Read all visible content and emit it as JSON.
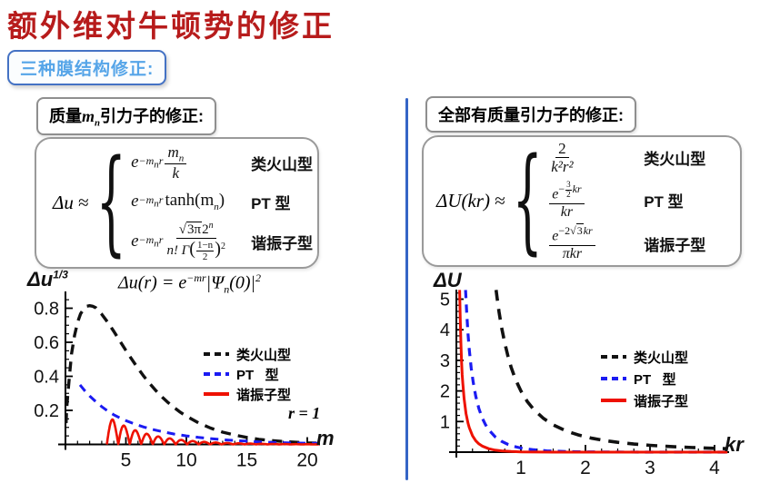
{
  "slide": {
    "title": "额外维对牛顿势的修正",
    "subtitle": "三种膜结构修正:"
  },
  "colors": {
    "title_red": "#B71C1C",
    "box_border_blue": "#4472C4",
    "subtitle_blue": "#56A5E8",
    "divider_blue": "#3565C6",
    "curve_black": "#111111",
    "curve_blue": "#1B1BF2",
    "curve_red": "#EE1100"
  },
  "left_panel": {
    "header": {
      "pre": "质量",
      "math_base": "m",
      "math_sub": "n",
      "post": "引力子的修正:"
    },
    "formula": {
      "lhs": "Δu",
      "approx": "≈",
      "rows": [
        {
          "e": "e",
          "exp_pre": "−m",
          "exp_sub": "n",
          "exp_post": "r",
          "num_base": "m",
          "num_sub": "n",
          "den": "k",
          "label": "类火山型"
        },
        {
          "e": "e",
          "exp_pre": "−m",
          "exp_sub": "n",
          "exp_post": "r",
          "fn": "tanh(m",
          "fn_sub": "n",
          "fn_close": ")",
          "label": "PT 型"
        },
        {
          "e": "e",
          "exp_pre": "−m",
          "exp_sub": "n",
          "exp_post": "r",
          "sqrt": "√",
          "rad": "3π",
          "pow_base": "2",
          "pow_exp": "n",
          "den_pre": "n! Γ",
          "paren_open": "(",
          "ifrac_num": "1−n",
          "ifrac_den": "2",
          "paren_close": ")",
          "den_sup": "2",
          "label": "谐振子型"
        }
      ]
    }
  },
  "right_panel": {
    "header": "全部有质量引力子的修正:",
    "formula": {
      "lhs": "ΔU(kr)",
      "approx": "≈",
      "rows": [
        {
          "num": "2",
          "den": "k²r²",
          "label": "类火山型"
        },
        {
          "e": "e",
          "exp_pre": "−",
          "exp_num": "3",
          "exp_den": "2",
          "exp_post": "kr",
          "den": "kr",
          "label": "PT 型"
        },
        {
          "e": "e",
          "exp_pre": "−2",
          "sqrt": "√",
          "rad": "3",
          "exp_post": "kr",
          "den": "πkr",
          "label": "谐振子型"
        }
      ]
    }
  },
  "chart_data": [
    {
      "type": "line",
      "title_tokens": {
        "a": "Δu(r) = e",
        "a_sup": "−mr",
        "b_pre": "|Ψ",
        "b_sub": "n",
        "b_post": "(0)|",
        "b_sup": "2"
      },
      "ylabel": "Δu",
      "ylabel_sup": "1/3",
      "xlabel": "m",
      "xlim": [
        0,
        21.2
      ],
      "ylim": [
        0,
        0.88
      ],
      "xticks": [
        5,
        10,
        15,
        20
      ],
      "yticks": [
        0.2,
        0.4,
        0.6,
        0.8
      ],
      "xtick_labels": [
        "5",
        "10",
        "15",
        "20"
      ],
      "ytick_labels": [
        "0.2",
        "0.4",
        "0.6",
        "0.8"
      ],
      "xminor_step": 1,
      "yminor_step": 0.05,
      "grid": false,
      "legend_position": "center-right",
      "annotation": "r = 1",
      "legend": [
        {
          "label": "类火山型",
          "dash": true,
          "color": "#111111"
        },
        {
          "label": "PT   型",
          "dash": true,
          "color": "#1B1BF2"
        },
        {
          "label": "谐振子型",
          "dash": false,
          "color": "#EE1100"
        }
      ],
      "series": [
        {
          "name": "类火山型",
          "color": "#111111",
          "dash": [
            11,
            8
          ],
          "width": 3.4,
          "points": [
            [
              0.05,
              0.125
            ],
            [
              0.1,
              0.208
            ],
            [
              0.2,
              0.3
            ],
            [
              0.35,
              0.42
            ],
            [
              0.5,
              0.533
            ],
            [
              0.75,
              0.64
            ],
            [
              1,
              0.717
            ],
            [
              1.25,
              0.767
            ],
            [
              1.5,
              0.795
            ],
            [
              1.75,
              0.812
            ],
            [
              2,
              0.815
            ],
            [
              2.25,
              0.812
            ],
            [
              2.5,
              0.803
            ],
            [
              3,
              0.765
            ],
            [
              3.5,
              0.717
            ],
            [
              4,
              0.664
            ],
            [
              4.5,
              0.608
            ],
            [
              5,
              0.552
            ],
            [
              5.5,
              0.498
            ],
            [
              6,
              0.447
            ],
            [
              6.5,
              0.399
            ],
            [
              7,
              0.355
            ],
            [
              7.5,
              0.314
            ],
            [
              8,
              0.278
            ],
            [
              8.5,
              0.245
            ],
            [
              9,
              0.216
            ],
            [
              9.5,
              0.189
            ],
            [
              10,
              0.166
            ],
            [
              11,
              0.127
            ],
            [
              12,
              0.096
            ],
            [
              13,
              0.072
            ],
            [
              14,
              0.055
            ],
            [
              15,
              0.041
            ],
            [
              16,
              0.03
            ],
            [
              17,
              0.023
            ],
            [
              18,
              0.017
            ],
            [
              19,
              0.013
            ],
            [
              20,
              0.009
            ],
            [
              21,
              0.007
            ]
          ]
        },
        {
          "name": "PT 型",
          "color": "#1B1BF2",
          "dash": [
            9,
            7
          ],
          "width": 3,
          "points": [
            [
              1.2,
              0.35
            ],
            [
              1.6,
              0.315
            ],
            [
              2,
              0.285
            ],
            [
              2.5,
              0.252
            ],
            [
              3,
              0.222
            ],
            [
              3.5,
              0.196
            ],
            [
              4,
              0.174
            ],
            [
              4.5,
              0.156
            ],
            [
              5,
              0.14
            ],
            [
              5.5,
              0.126
            ],
            [
              6,
              0.113
            ],
            [
              6.5,
              0.102
            ],
            [
              7,
              0.092
            ],
            [
              7.5,
              0.083
            ],
            [
              8,
              0.075
            ],
            [
              9,
              0.061
            ],
            [
              10,
              0.05
            ],
            [
              11,
              0.041
            ],
            [
              12,
              0.034
            ],
            [
              13,
              0.028
            ],
            [
              14,
              0.023
            ],
            [
              15,
              0.019
            ],
            [
              16,
              0.015
            ],
            [
              17,
              0.012
            ],
            [
              18,
              0.01
            ],
            [
              19,
              0.008
            ],
            [
              20,
              0.007
            ],
            [
              21,
              0.006
            ]
          ]
        },
        {
          "name": "谐振子型",
          "color": "#EE1100",
          "width": 2.6,
          "oscillation": {
            "x_start": 3.42,
            "x_end": 21,
            "period": 0.95,
            "peak": 0.147,
            "tau": 3.3
          }
        }
      ]
    },
    {
      "type": "line",
      "ylabel": "ΔU",
      "xlabel": "kr",
      "xlim": [
        0,
        4.35
      ],
      "ylim": [
        0,
        5.3
      ],
      "xticks": [
        1,
        2,
        3,
        4
      ],
      "yticks": [
        1,
        2,
        3,
        4,
        5
      ],
      "xtick_labels": [
        "1",
        "2",
        "3",
        "4"
      ],
      "ytick_labels": [
        "1",
        "2",
        "3",
        "4",
        "5"
      ],
      "xminor_step": 0.25,
      "yminor_step": 0.2,
      "grid": false,
      "legend_position": "center-right",
      "annotation": "",
      "legend": [
        {
          "label": "类火山型",
          "dash": true,
          "color": "#111111"
        },
        {
          "label": "PT   型",
          "dash": true,
          "color": "#1B1BF2"
        },
        {
          "label": "谐振子型",
          "dash": false,
          "color": "#EE1100"
        }
      ],
      "series": [
        {
          "name": "类火山型",
          "color": "#111111",
          "dash": [
            12,
            9
          ],
          "width": 3.6,
          "points": [
            [
              0.615,
              5.3
            ],
            [
              0.634,
              5.0
            ],
            [
              0.66,
              4.59
            ],
            [
              0.7,
              4.08
            ],
            [
              0.75,
              3.56
            ],
            [
              0.8,
              3.13
            ],
            [
              0.85,
              2.77
            ],
            [
              0.9,
              2.47
            ],
            [
              0.95,
              2.22
            ],
            [
              1,
              2.0
            ],
            [
              1.1,
              1.65
            ],
            [
              1.2,
              1.39
            ],
            [
              1.35,
              1.1
            ],
            [
              1.5,
              0.89
            ],
            [
              1.7,
              0.69
            ],
            [
              1.9,
              0.554
            ],
            [
              2.1,
              0.454
            ],
            [
              2.3,
              0.378
            ],
            [
              2.5,
              0.32
            ],
            [
              2.75,
              0.264
            ],
            [
              3,
              0.222
            ],
            [
              3.25,
              0.189
            ],
            [
              3.5,
              0.163
            ],
            [
              3.75,
              0.142
            ],
            [
              4,
              0.125
            ],
            [
              4.2,
              0.113
            ]
          ]
        },
        {
          "name": "PT 型",
          "color": "#1B1BF2",
          "dash": [
            9,
            7
          ],
          "width": 3.2,
          "points": [
            [
              0.142,
              5.3
            ],
            [
              0.16,
              4.55
            ],
            [
              0.18,
              3.87
            ],
            [
              0.2,
              3.35
            ],
            [
              0.23,
              2.75
            ],
            [
              0.26,
              2.29
            ],
            [
              0.3,
              1.83
            ],
            [
              0.35,
              1.42
            ],
            [
              0.4,
              1.12
            ],
            [
              0.45,
              0.9
            ],
            [
              0.5,
              0.736
            ],
            [
              0.6,
              0.502
            ],
            [
              0.7,
              0.352
            ],
            [
              0.8,
              0.252
            ],
            [
              0.9,
              0.184
            ],
            [
              1,
              0.135
            ],
            [
              1.2,
              0.076
            ],
            [
              1.4,
              0.043
            ],
            [
              1.6,
              0.026
            ],
            [
              1.8,
              0.015
            ],
            [
              2,
              0.009
            ],
            [
              2.5,
              0.003
            ],
            [
              3,
              0.001
            ],
            [
              3.5,
              0.0004
            ],
            [
              4.2,
              0.0001
            ]
          ]
        },
        {
          "name": "谐振子型",
          "color": "#EE1100",
          "width": 3,
          "points": [
            [
              0.051,
              5.3
            ],
            [
              0.054,
              5.0
            ],
            [
              0.06,
              4.33
            ],
            [
              0.07,
              3.56
            ],
            [
              0.08,
              2.97
            ],
            [
              0.09,
              2.53
            ],
            [
              0.1,
              2.25
            ],
            [
              0.12,
              1.75
            ],
            [
              0.15,
              1.26
            ],
            [
              0.18,
              0.95
            ],
            [
              0.2,
              0.8
            ],
            [
              0.25,
              0.53
            ],
            [
              0.3,
              0.375
            ],
            [
              0.35,
              0.27
            ],
            [
              0.4,
              0.199
            ],
            [
              0.5,
              0.113
            ],
            [
              0.6,
              0.066
            ],
            [
              0.7,
              0.041
            ],
            [
              0.85,
              0.02
            ],
            [
              1,
              0.0099
            ],
            [
              1.25,
              0.0034
            ],
            [
              1.5,
              0.0012
            ],
            [
              2,
              0.0002
            ],
            [
              3,
              0.0
            ],
            [
              4.2,
              0.0
            ]
          ]
        }
      ]
    }
  ]
}
